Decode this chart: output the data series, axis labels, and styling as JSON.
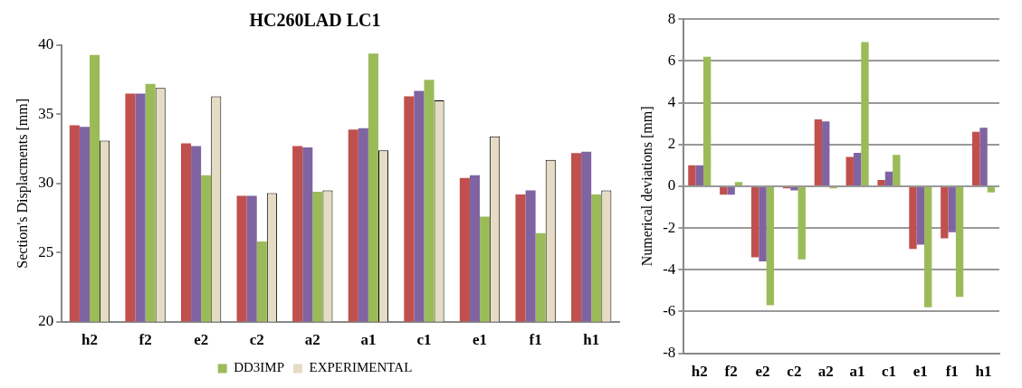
{
  "chart_data": [
    {
      "type": "bar",
      "title": "HC260LAD LC1",
      "ylabel": "Section's Displacments [mm]",
      "categories": [
        "h2",
        "f2",
        "e2",
        "c2",
        "a2",
        "a1",
        "c1",
        "e1",
        "f1",
        "h1"
      ],
      "ylim": [
        20,
        40
      ],
      "yticks": [
        20,
        25,
        30,
        35,
        40
      ],
      "grid": false,
      "legend": "bottom",
      "series": [
        {
          "color": "#c0504d",
          "values": [
            34.2,
            36.5,
            32.9,
            29.1,
            32.7,
            33.9,
            36.3,
            30.4,
            29.2,
            32.2
          ]
        },
        {
          "color": "#8064a2",
          "values": [
            34.1,
            36.5,
            32.7,
            29.1,
            32.6,
            34.0,
            36.7,
            30.6,
            29.5,
            32.3
          ]
        },
        {
          "name": "DD3IMP",
          "color": "#9bbb59",
          "values": [
            39.3,
            37.2,
            30.6,
            25.8,
            29.4,
            39.4,
            37.5,
            27.6,
            26.4,
            29.2
          ]
        },
        {
          "name": "EXPERIMENTAL",
          "color": "#e6dcc4",
          "values": [
            33.1,
            36.9,
            36.3,
            29.3,
            29.5,
            32.4,
            36.0,
            33.4,
            31.7,
            29.5
          ]
        }
      ]
    },
    {
      "type": "bar",
      "ylabel": "Numerical deviations [mm]",
      "categories": [
        "h2",
        "f2",
        "e2",
        "c2",
        "a2",
        "a1",
        "c1",
        "e1",
        "f1",
        "h1"
      ],
      "ylim": [
        -8,
        8
      ],
      "yticks": [
        -8,
        -6,
        -4,
        -2,
        0,
        2,
        4,
        6,
        8
      ],
      "grid": "y",
      "legend": false,
      "series": [
        {
          "color": "#c0504d",
          "values": [
            1.0,
            -0.4,
            -3.4,
            -0.1,
            3.2,
            1.4,
            0.3,
            -3.0,
            -2.5,
            2.6
          ]
        },
        {
          "color": "#8064a2",
          "values": [
            1.0,
            -0.4,
            -3.6,
            -0.2,
            3.1,
            1.6,
            0.7,
            -2.8,
            -2.2,
            2.8
          ]
        },
        {
          "color": "#9bbb59",
          "values": [
            6.2,
            0.2,
            -5.7,
            -3.5,
            -0.1,
            6.9,
            1.5,
            -5.8,
            -5.3,
            -0.3
          ]
        }
      ]
    }
  ]
}
